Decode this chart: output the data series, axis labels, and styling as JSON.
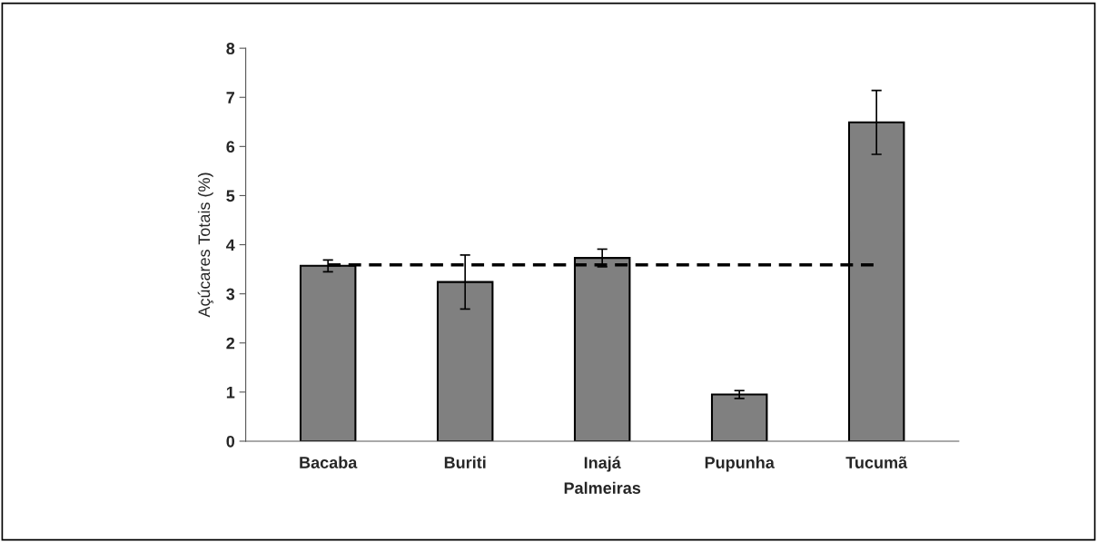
{
  "chart_data": {
    "type": "bar",
    "xlabel": "Palmeiras",
    "ylabel": "Açúcares Totais (%)",
    "categories": [
      "Bacaba",
      "Buriti",
      "Inajá",
      "Pupunha",
      "Tucumã"
    ],
    "values": [
      3.57,
      3.24,
      3.73,
      0.95,
      6.49
    ],
    "errors": [
      0.12,
      0.55,
      0.18,
      0.08,
      0.65
    ],
    "color": "#808080",
    "ylim": [
      0,
      8
    ],
    "yticks": [
      0,
      1,
      2,
      3,
      4,
      5,
      6,
      7,
      8
    ],
    "ref_lines": [
      {
        "axis": "y",
        "value": 3.59,
        "color": "#000000",
        "line_style": "dashed"
      }
    ],
    "grid": false,
    "legend": false
  }
}
